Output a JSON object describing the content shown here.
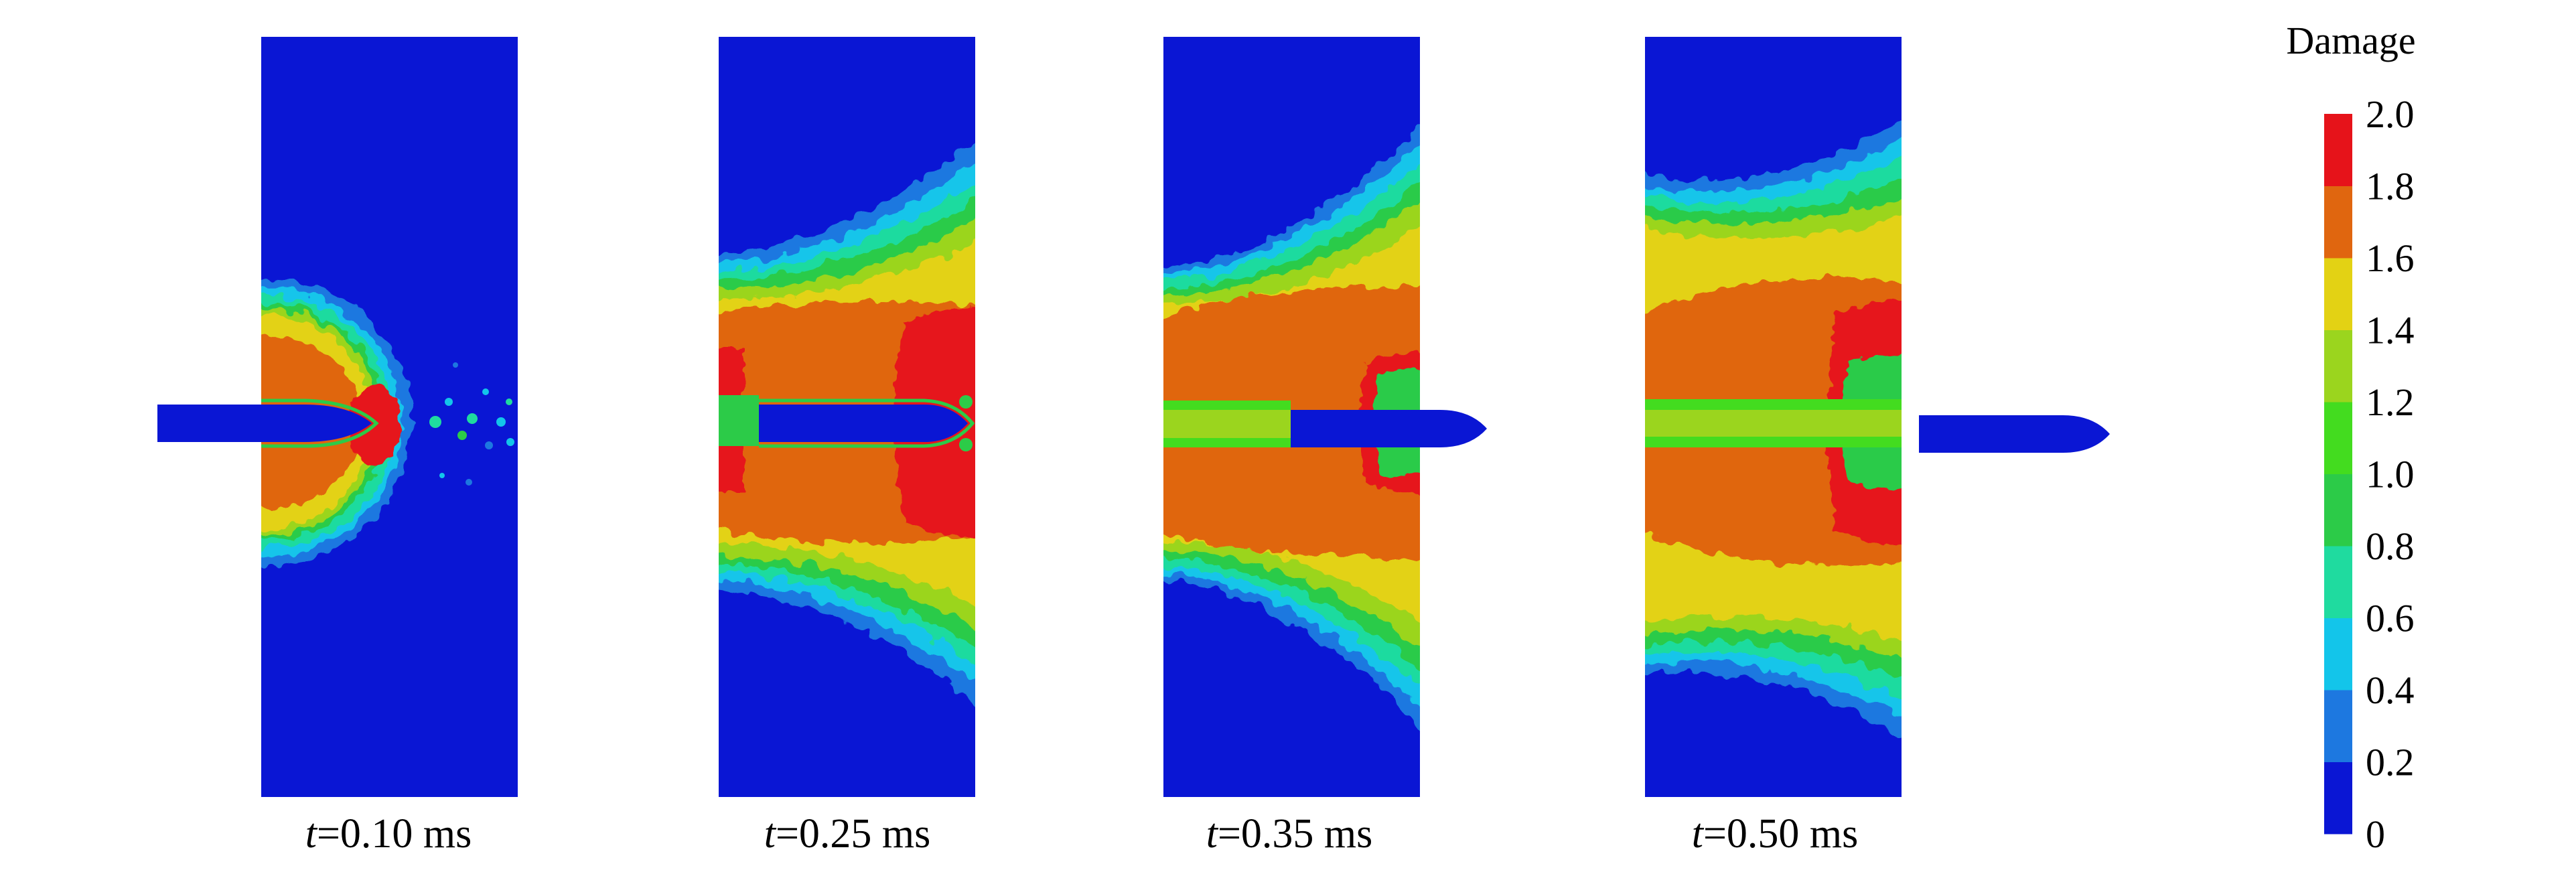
{
  "colorbar": {
    "title": "Damage",
    "tick_labels": [
      "2.0",
      "1.8",
      "1.6",
      "1.4",
      "1.2",
      "1.0",
      "0.8",
      "0.6",
      "0.4",
      "0.2",
      "0"
    ],
    "levels": [
      {
        "from": 0.0,
        "to": 0.2,
        "color": "#0a16d4"
      },
      {
        "from": 0.2,
        "to": 0.4,
        "color": "#1d78e0"
      },
      {
        "from": 0.4,
        "to": 0.6,
        "color": "#13c5ea"
      },
      {
        "from": 0.6,
        "to": 0.8,
        "color": "#1fdb9f"
      },
      {
        "from": 0.8,
        "to": 1.0,
        "color": "#2ccb48"
      },
      {
        "from": 1.0,
        "to": 1.2,
        "color": "#43dc1f"
      },
      {
        "from": 1.2,
        "to": 1.4,
        "color": "#9bd51e"
      },
      {
        "from": 1.4,
        "to": 1.6,
        "color": "#e3d214"
      },
      {
        "from": 1.6,
        "to": 1.8,
        "color": "#e0660f"
      },
      {
        "from": 1.8,
        "to": 2.0,
        "color": "#e6131a"
      }
    ]
  },
  "panels": [
    {
      "time_var": "t",
      "time_value": "=0.10 ms",
      "projectile_position": "penetrating"
    },
    {
      "time_var": "t",
      "time_value": "=0.25 ms",
      "projectile_position": "nose-exiting"
    },
    {
      "time_var": "t",
      "time_value": "=0.35 ms",
      "projectile_position": "exiting"
    },
    {
      "time_var": "t",
      "time_value": "=0.50 ms",
      "projectile_position": "perforated"
    }
  ]
}
